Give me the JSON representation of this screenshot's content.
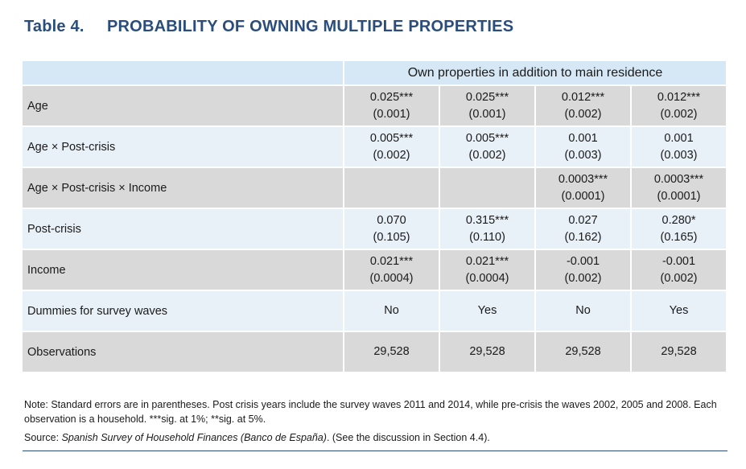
{
  "title": {
    "number": "Table 4.",
    "text": "PROBABILITY OF OWNING MULTIPLE PROPERTIES"
  },
  "table": {
    "spanning_header": "Own properties in addition to main residence",
    "rows": [
      {
        "label": "Age",
        "cells": [
          [
            "0.025***",
            "(0.001)"
          ],
          [
            "0.025***",
            "(0.001)"
          ],
          [
            "0.012***",
            "(0.002)"
          ],
          [
            "0.012***",
            "(0.002)"
          ]
        ]
      },
      {
        "label": "Age × Post-crisis",
        "cells": [
          [
            "0.005***",
            "(0.002)"
          ],
          [
            "0.005***",
            "(0.002)"
          ],
          [
            "0.001",
            "(0.003)"
          ],
          [
            "0.001",
            "(0.003)"
          ]
        ]
      },
      {
        "label": "Age × Post-crisis × Income",
        "cells": [
          [
            "",
            ""
          ],
          [
            "",
            ""
          ],
          [
            "0.0003***",
            "(0.0001)"
          ],
          [
            "0.0003***",
            "(0.0001)"
          ]
        ]
      },
      {
        "label": "Post-crisis",
        "cells": [
          [
            "0.070",
            "(0.105)"
          ],
          [
            "0.315***",
            "(0.110)"
          ],
          [
            "0.027",
            "(0.162)"
          ],
          [
            "0.280*",
            "(0.165)"
          ]
        ]
      },
      {
        "label": "Income",
        "cells": [
          [
            "0.021***",
            "(0.0004)"
          ],
          [
            "0.021***",
            "(0.0004)"
          ],
          [
            "-0.001",
            "(0.002)"
          ],
          [
            "-0.001",
            "(0.002)"
          ]
        ]
      },
      {
        "label": "Dummies for survey waves",
        "cells": [
          [
            "No"
          ],
          [
            "Yes"
          ],
          [
            "No"
          ],
          [
            "Yes"
          ]
        ]
      },
      {
        "label": "Observations",
        "cells": [
          [
            "29,528"
          ],
          [
            "29,528"
          ],
          [
            "29,528"
          ],
          [
            "29,528"
          ]
        ]
      }
    ]
  },
  "note": "Note: Standard errors are in parentheses. Post crisis years include the survey waves 2011 and 2014, while pre-crisis the waves 2002, 2005 and 2008. Each observation is a household. ***sig. at 1%; **sig. at 5%.",
  "source": {
    "prefix": "Source: ",
    "name": "Spanish Survey of Household Finances (Banco de España)",
    "suffix": ". (See the discussion in Section 4.4)."
  }
}
